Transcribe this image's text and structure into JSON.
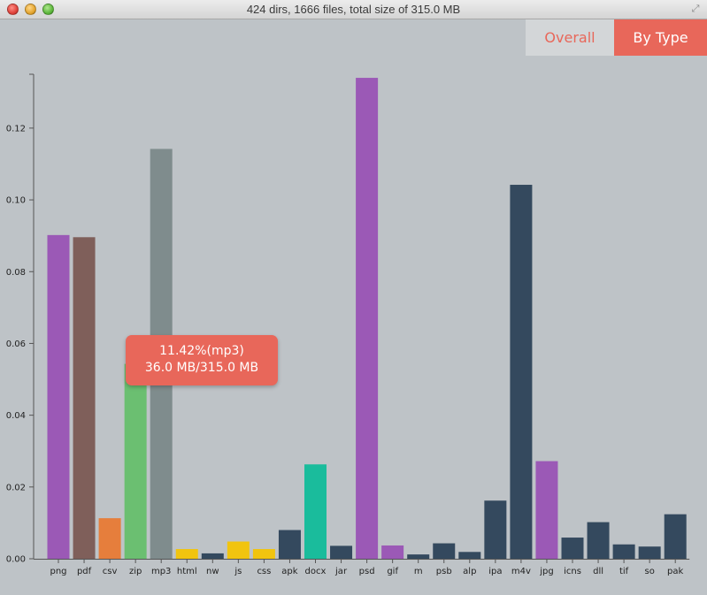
{
  "window": {
    "title": "424 dirs, 1666 files, total size of 315.0 MB"
  },
  "tabs": {
    "overall": "Overall",
    "by_type": "By Type",
    "active": "By Type"
  },
  "tooltip": {
    "line1": "11.42%(mp3)",
    "line2": "36.0 MB/315.0 MB"
  },
  "colors": {
    "accent": "#e8675a",
    "background": "#bec3c7"
  },
  "chart_data": {
    "type": "bar",
    "categories": [
      "png",
      "pdf",
      "csv",
      "zip",
      "mp3",
      "html",
      "nw",
      "js",
      "css",
      "apk",
      "docx",
      "jar",
      "psd",
      "gif",
      "m",
      "psb",
      "alp",
      "ipa",
      "m4v",
      "jpg",
      "icns",
      "dll",
      "tif",
      "so",
      "pak"
    ],
    "values": [
      0.0902,
      0.0896,
      0.0113,
      0.0543,
      0.1142,
      0.0027,
      0.0015,
      0.0048,
      0.0027,
      0.008,
      0.0263,
      0.0036,
      0.134,
      0.0037,
      0.0012,
      0.0043,
      0.0019,
      0.0162,
      0.1042,
      0.0272,
      0.0059,
      0.0102,
      0.004,
      0.0034,
      0.0124
    ],
    "colors": [
      "#9b59b6",
      "#7f5f5a",
      "#e67e3c",
      "#6bbf71",
      "#7f8c8d",
      "#f1c40f",
      "#34495e",
      "#f1c40f",
      "#f1c40f",
      "#34495e",
      "#1abc9c",
      "#34495e",
      "#9b59b6",
      "#9b59b6",
      "#34495e",
      "#34495e",
      "#34495e",
      "#34495e",
      "#34495e",
      "#9b59b6",
      "#34495e",
      "#34495e",
      "#34495e",
      "#34495e",
      "#34495e"
    ],
    "yticks": [
      0.0,
      0.02,
      0.04,
      0.06,
      0.08,
      0.1,
      0.12
    ],
    "ylim": [
      0,
      0.135
    ],
    "title": "",
    "xlabel": "",
    "ylabel": "",
    "grid": false
  }
}
